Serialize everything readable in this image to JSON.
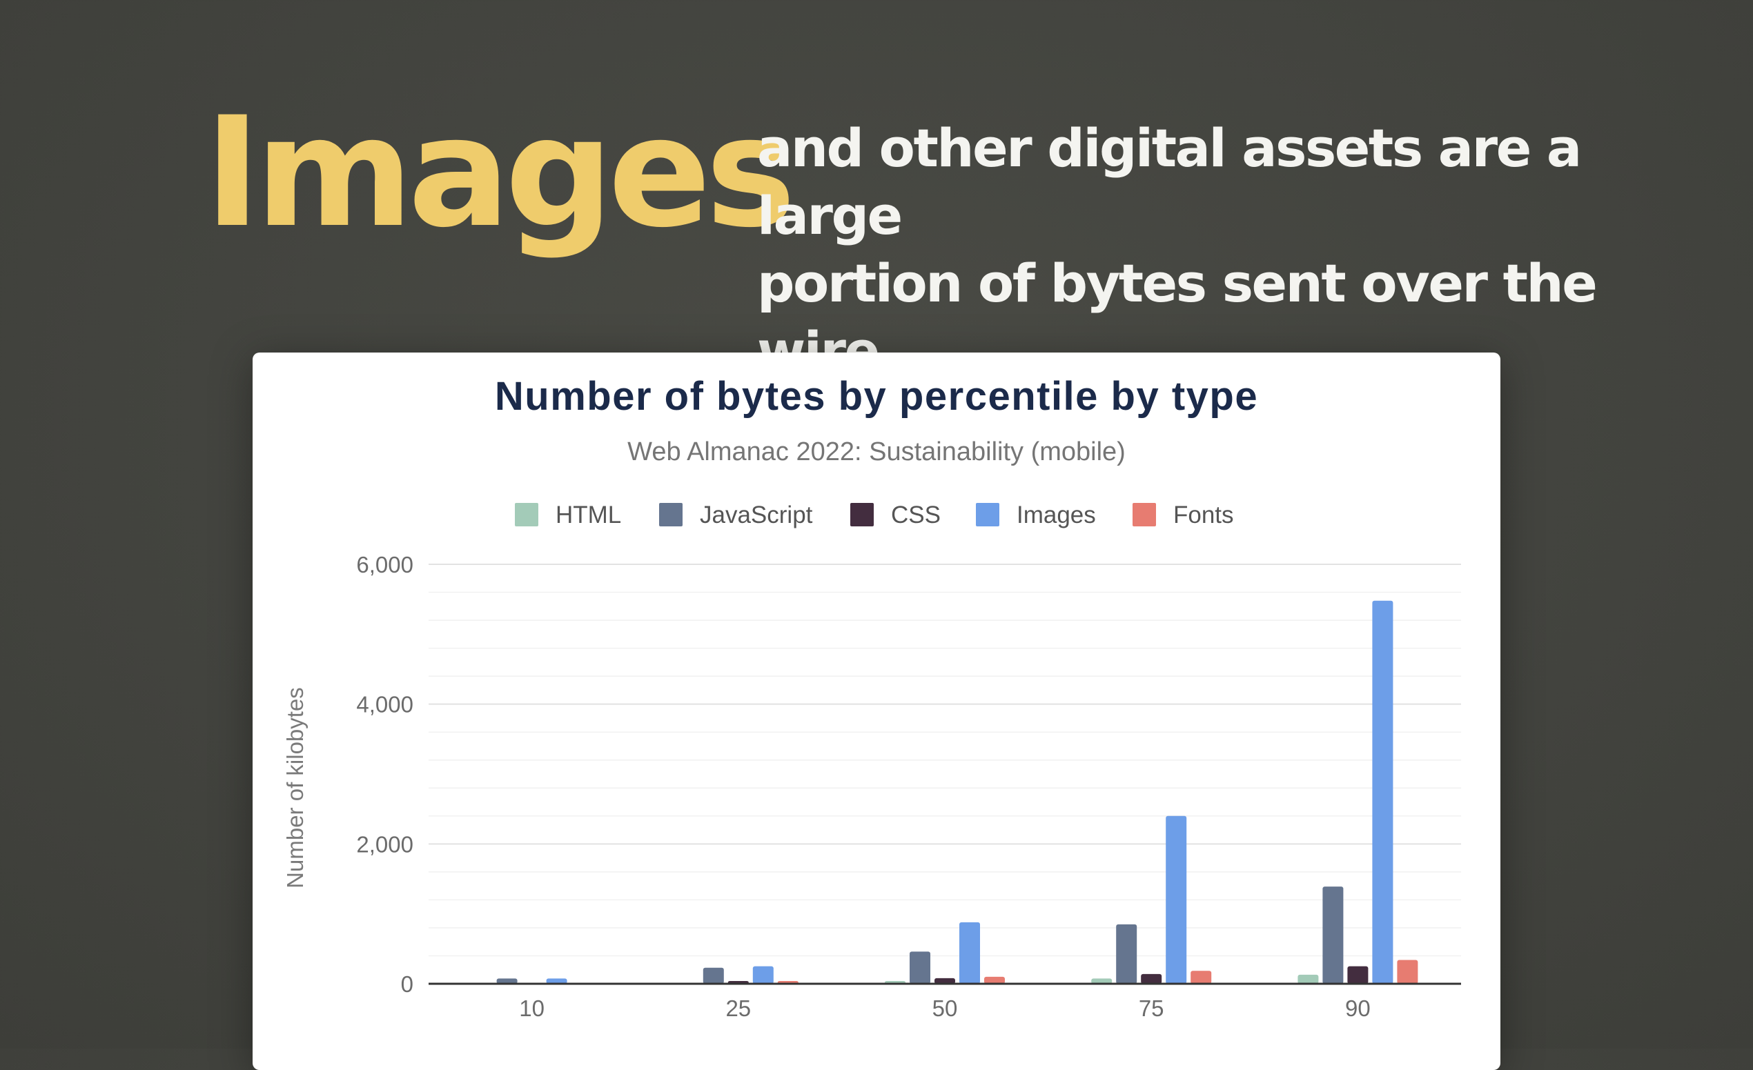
{
  "slide": {
    "headline": "Images",
    "tagline_line1": "and other digital assets are a large",
    "tagline_line2": "portion of bytes sent over the wire.",
    "headline_color": "#efcc6c"
  },
  "chart_data": {
    "type": "bar",
    "title": "Number of bytes by percentile by type",
    "subtitle": "Web Almanac 2022: Sustainability (mobile)",
    "xlabel": "",
    "ylabel": "Number of kilobytes",
    "categories": [
      "10",
      "25",
      "50",
      "75",
      "90"
    ],
    "y_ticks": [
      "0",
      "2,000",
      "4,000",
      "6,000"
    ],
    "ylim": [
      0,
      6000
    ],
    "grid": true,
    "legend_position": "top",
    "series": [
      {
        "name": "HTML",
        "color": "#a3cbb8",
        "values": [
          5,
          15,
          40,
          75,
          130
        ]
      },
      {
        "name": "JavaScript",
        "color": "#65758f",
        "values": [
          75,
          230,
          460,
          850,
          1390
        ]
      },
      {
        "name": "CSS",
        "color": "#432d3f",
        "values": [
          10,
          40,
          80,
          140,
          250
        ]
      },
      {
        "name": "Images",
        "color": "#6d9ee8",
        "values": [
          75,
          250,
          880,
          2400,
          5480
        ]
      },
      {
        "name": "Fonts",
        "color": "#e77c71",
        "values": [
          5,
          40,
          100,
          185,
          340
        ]
      }
    ]
  }
}
